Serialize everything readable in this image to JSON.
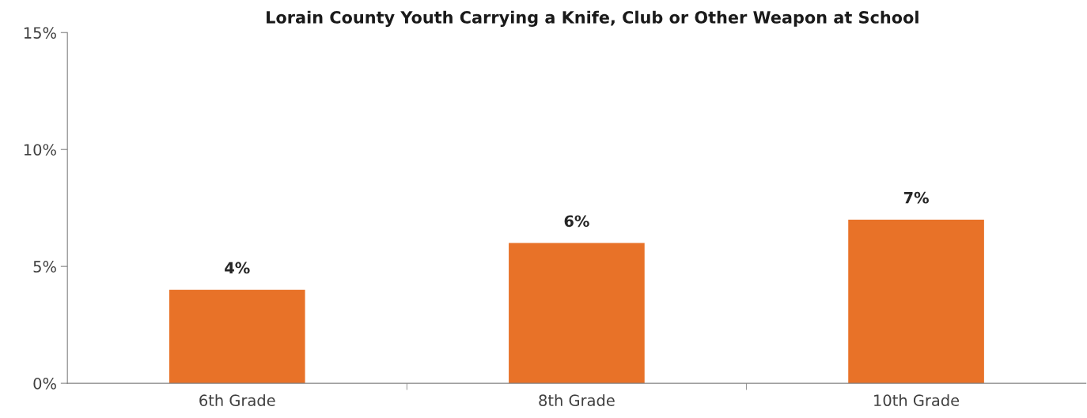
{
  "chart_data": {
    "type": "bar",
    "title": "Lorain County Youth Carrying a Knife, Club or Other Weapon at School",
    "categories": [
      "6th Grade",
      "8th Grade",
      "10th Grade"
    ],
    "values": [
      4,
      6,
      7
    ],
    "value_labels": [
      "4%",
      "6%",
      "7%"
    ],
    "color": "#e87228",
    "ylim": [
      0,
      15
    ],
    "yticks": [
      {
        "value": 0,
        "label": "0%"
      },
      {
        "value": 5,
        "label": "5%"
      },
      {
        "value": 10,
        "label": "10%"
      },
      {
        "value": 15,
        "label": "15%"
      }
    ],
    "grid": false,
    "legend": false
  }
}
